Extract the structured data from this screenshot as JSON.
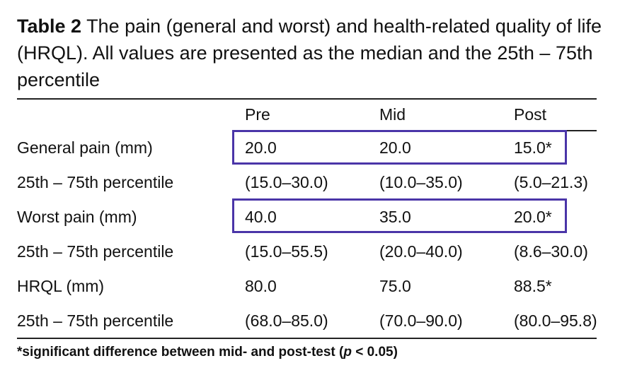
{
  "caption": {
    "label": "Table 2",
    "text": "The pain (general and worst) and health-related quality of life (HRQL). All values are presented as the median and the 25th – 75th percentile"
  },
  "table": {
    "columns": [
      "Pre",
      "Mid",
      "Post"
    ],
    "rows": [
      [
        "General pain (mm)",
        "20.0",
        "20.0",
        "15.0*"
      ],
      [
        "25th – 75th percentile",
        "(15.0–30.0)",
        "(10.0–35.0)",
        "(5.0–21.3)"
      ],
      [
        "Worst pain (mm)",
        "40.0",
        "35.0",
        "20.0*"
      ],
      [
        "25th – 75th percentile",
        "(15.0–55.5)",
        "(20.0–40.0)",
        "(8.6–30.0)"
      ],
      [
        "HRQL (mm)",
        "80.0",
        "75.0",
        "88.5*"
      ],
      [
        "25th – 75th percentile",
        "(68.0–85.0)",
        "(70.0–90.0)",
        "(80.0–95.8)"
      ]
    ]
  },
  "footnote": {
    "before": "*significant difference between mid- and post-test (",
    "italic": "p",
    "after": " < 0.05)"
  }
}
